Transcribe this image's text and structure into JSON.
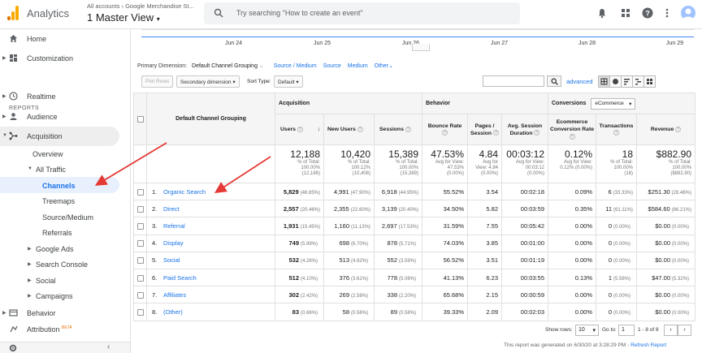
{
  "header": {
    "app_title": "Analytics",
    "account_crumb": "All accounts › Google Merchandise St...",
    "view_title": "1 Master View",
    "search_placeholder": "Try searching \"How to create an event\""
  },
  "sidebar": {
    "home": "Home",
    "customization": "Customization",
    "reports_label": "REPORTS",
    "realtime": "Realtime",
    "audience": "Audience",
    "acquisition": "Acquisition",
    "overview": "Overview",
    "all_traffic": "All Traffic",
    "channels": "Channels",
    "treemaps": "Treemaps",
    "source_medium": "Source/Medium",
    "referrals": "Referrals",
    "google_ads": "Google Ads",
    "search_console": "Search Console",
    "social": "Social",
    "campaigns": "Campaigns",
    "behavior": "Behavior",
    "attribution": "Attribution",
    "beta": "BETA"
  },
  "chart": {
    "x_ticks": [
      "Jun 24",
      "Jun 25",
      "Jun 26",
      "Jun 27",
      "Jun 28",
      "Jun 29"
    ]
  },
  "dimension_bar": {
    "label": "Primary Dimension:",
    "selected": "Default Channel Grouping",
    "options": [
      "Source / Medium",
      "Source",
      "Medium",
      "Other"
    ]
  },
  "toolbar": {
    "plot_rows": "Plot Rows",
    "secondary_dimension": "Secondary dimension",
    "sort_type_label": "Sort Type:",
    "sort_type_value": "Default",
    "advanced": "advanced"
  },
  "table": {
    "dimension_header": "Default Channel Grouping",
    "groups": {
      "acquisition": "Acquisition",
      "behavior": "Behavior",
      "conversions": "Conversions",
      "conversions_select": "eCommerce"
    },
    "columns": {
      "users": "Users",
      "new_users": "New Users",
      "sessions": "Sessions",
      "bounce_rate": "Bounce Rate",
      "pages_session": "Pages / Session",
      "avg_session": "Avg. Session Duration",
      "ecom_rate": "Ecommerce Conversion Rate",
      "transactions": "Transactions",
      "revenue": "Revenue"
    },
    "totals": {
      "users": {
        "value": "12,188",
        "sub1": "% of Total:",
        "sub2": "100.00%",
        "sub3": "(12,188)"
      },
      "new_users": {
        "value": "10,420",
        "sub1": "% of Total:",
        "sub2": "100.12%",
        "sub3": "(10,408)"
      },
      "sessions": {
        "value": "15,389",
        "sub1": "% of Total:",
        "sub2": "100.00%",
        "sub3": "(15,389)"
      },
      "bounce_rate": {
        "value": "47.53%",
        "sub1": "Avg for View:",
        "sub2": "47.53%",
        "sub3": "(0.00%)"
      },
      "pages_session": {
        "value": "4.84",
        "sub1": "Avg for",
        "sub2": "View: 4.84",
        "sub3": "(0.00%)"
      },
      "avg_session": {
        "value": "00:03:12",
        "sub1": "Avg for View:",
        "sub2": "00:03:12",
        "sub3": "(0.00%)"
      },
      "ecom_rate": {
        "value": "0.12%",
        "sub1": "Avg for View:",
        "sub2": "0.12% (0.00%)",
        "sub3": ""
      },
      "transactions": {
        "value": "18",
        "sub1": "% of Total:",
        "sub2": "100.00%",
        "sub3": "(18)"
      },
      "revenue": {
        "value": "$882.90",
        "sub1": "% of Total:",
        "sub2": "100.00%",
        "sub3": "($882.90)"
      }
    },
    "rows": [
      {
        "idx": "1.",
        "name": "Organic Search",
        "users": "5,829",
        "users_pct": "(46.65%)",
        "new_users": "4,991",
        "new_users_pct": "(47.90%)",
        "sessions": "6,918",
        "sessions_pct": "(44.95%)",
        "bounce": "55.52%",
        "pages": "3.54",
        "duration": "00:02:18",
        "ecom": "0.09%",
        "trans": "6",
        "trans_pct": "(33.33%)",
        "revenue": "$251.30",
        "revenue_pct": "(28.46%)"
      },
      {
        "idx": "2.",
        "name": "Direct",
        "users": "2,557",
        "users_pct": "(20.46%)",
        "new_users": "2,355",
        "new_users_pct": "(22.60%)",
        "sessions": "3,139",
        "sessions_pct": "(20.40%)",
        "bounce": "34.50%",
        "pages": "5.82",
        "duration": "00:03:59",
        "ecom": "0.35%",
        "trans": "11",
        "trans_pct": "(61.11%)",
        "revenue": "$584.60",
        "revenue_pct": "(66.21%)"
      },
      {
        "idx": "3.",
        "name": "Referral",
        "users": "1,931",
        "users_pct": "(15.45%)",
        "new_users": "1,160",
        "new_users_pct": "(11.13%)",
        "sessions": "2,697",
        "sessions_pct": "(17.53%)",
        "bounce": "31.59%",
        "pages": "7.55",
        "duration": "00:05:42",
        "ecom": "0.00%",
        "trans": "0",
        "trans_pct": "(0.00%)",
        "revenue": "$0.00",
        "revenue_pct": "(0.00%)"
      },
      {
        "idx": "4.",
        "name": "Display",
        "users": "749",
        "users_pct": "(5.99%)",
        "new_users": "698",
        "new_users_pct": "(6.70%)",
        "sessions": "878",
        "sessions_pct": "(5.71%)",
        "bounce": "74.03%",
        "pages": "3.85",
        "duration": "00:01:00",
        "ecom": "0.00%",
        "trans": "0",
        "trans_pct": "(0.00%)",
        "revenue": "$0.00",
        "revenue_pct": "(0.00%)"
      },
      {
        "idx": "5.",
        "name": "Social",
        "users": "532",
        "users_pct": "(4.26%)",
        "new_users": "513",
        "new_users_pct": "(4.92%)",
        "sessions": "552",
        "sessions_pct": "(3.59%)",
        "bounce": "56.52%",
        "pages": "3.51",
        "duration": "00:01:19",
        "ecom": "0.00%",
        "trans": "0",
        "trans_pct": "(0.00%)",
        "revenue": "$0.00",
        "revenue_pct": "(0.00%)"
      },
      {
        "idx": "6.",
        "name": "Paid Search",
        "users": "512",
        "users_pct": "(4.10%)",
        "new_users": "376",
        "new_users_pct": "(3.61%)",
        "sessions": "778",
        "sessions_pct": "(5.06%)",
        "bounce": "41.13%",
        "pages": "6.23",
        "duration": "00:03:55",
        "ecom": "0.13%",
        "trans": "1",
        "trans_pct": "(5.56%)",
        "revenue": "$47.00",
        "revenue_pct": "(5.32%)"
      },
      {
        "idx": "7.",
        "name": "Affiliates",
        "users": "302",
        "users_pct": "(2.42%)",
        "new_users": "269",
        "new_users_pct": "(2.58%)",
        "sessions": "338",
        "sessions_pct": "(2.20%)",
        "bounce": "65.68%",
        "pages": "2.15",
        "duration": "00:00:59",
        "ecom": "0.00%",
        "trans": "0",
        "trans_pct": "(0.00%)",
        "revenue": "$0.00",
        "revenue_pct": "(0.00%)"
      },
      {
        "idx": "8.",
        "name": "(Other)",
        "users": "83",
        "users_pct": "(0.66%)",
        "new_users": "58",
        "new_users_pct": "(0.56%)",
        "sessions": "89",
        "sessions_pct": "(0.58%)",
        "bounce": "39.33%",
        "pages": "2.09",
        "duration": "00:02:03",
        "ecom": "0.00%",
        "trans": "0",
        "trans_pct": "(0.00%)",
        "revenue": "$0.00",
        "revenue_pct": "(0.00%)"
      }
    ]
  },
  "pager": {
    "show_rows_label": "Show rows:",
    "show_rows_value": "10",
    "goto_label": "Go to:",
    "goto_value": "1",
    "range": "1 - 8 of 8"
  },
  "footer": {
    "note": "This report was generated on 6/30/20 at 3:28:29 PM - ",
    "refresh": "Refresh Report"
  },
  "colors": {
    "accent": "#1a73e8",
    "chart_line": "#4285f4",
    "arrow": "#e53935",
    "logo_orange": "#f9ab00",
    "logo_dark": "#e37400"
  }
}
